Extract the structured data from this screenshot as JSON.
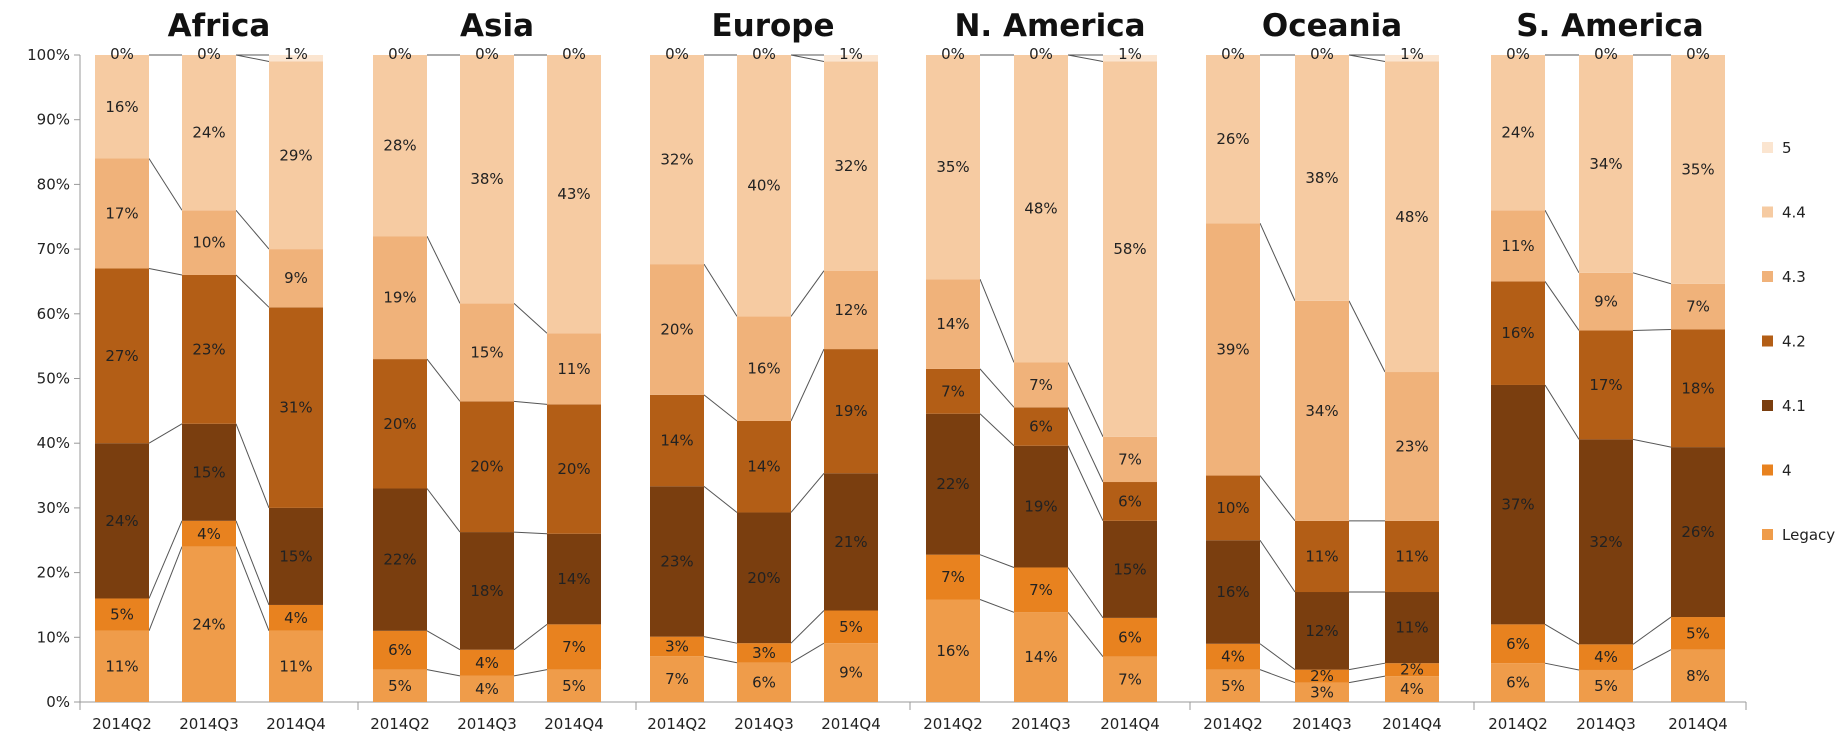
{
  "chart_data": {
    "type": "bar",
    "stacked": true,
    "normalized": true,
    "yticks": [
      "0%",
      "10%",
      "20%",
      "30%",
      "40%",
      "50%",
      "60%",
      "70%",
      "80%",
      "90%",
      "100%"
    ],
    "ylim": [
      0,
      100
    ],
    "legend": {
      "position": "right"
    },
    "series": [
      {
        "name": "Legacy",
        "color": "#EF9C4A"
      },
      {
        "name": "4",
        "color": "#E8821F"
      },
      {
        "name": "4.1",
        "color": "#7A3E0F"
      },
      {
        "name": "4.2",
        "color": "#B35E16"
      },
      {
        "name": "4.3",
        "color": "#F0B27A"
      },
      {
        "name": "4.4",
        "color": "#F6CBA2"
      },
      {
        "name": "5",
        "color": "#FBE5D0"
      }
    ],
    "panels": [
      {
        "title": "Africa",
        "categories": [
          "2014Q2",
          "2014Q3",
          "2014Q4"
        ],
        "values": [
          [
            11,
            5,
            24,
            27,
            17,
            16,
            0
          ],
          [
            24,
            4,
            15,
            23,
            10,
            24,
            0
          ],
          [
            11,
            4,
            15,
            31,
            9,
            29,
            1
          ]
        ],
        "labels": [
          [
            "11%",
            "5%",
            "24%",
            "27%",
            "17%",
            "16%",
            "0%"
          ],
          [
            "24%",
            "4%",
            "15%",
            "23%",
            "10%",
            "24%",
            "0%"
          ],
          [
            "11%",
            "4%",
            "15%",
            "31%",
            "9%",
            "29%",
            "1%"
          ]
        ]
      },
      {
        "title": "Asia",
        "categories": [
          "2014Q2",
          "2014Q3",
          "2014Q4"
        ],
        "values": [
          [
            5,
            6,
            22,
            20,
            19,
            28,
            0
          ],
          [
            4,
            4,
            18,
            20,
            15,
            38,
            0
          ],
          [
            5,
            7,
            14,
            20,
            11,
            43,
            0
          ]
        ],
        "labels": [
          [
            "5%",
            "6%",
            "22%",
            "20%",
            "19%",
            "28%",
            "0%"
          ],
          [
            "4%",
            "4%",
            "18%",
            "20%",
            "15%",
            "38%",
            "0%"
          ],
          [
            "5%",
            "7%",
            "14%",
            "20%",
            "11%",
            "43%",
            "0%"
          ]
        ]
      },
      {
        "title": "Europe",
        "categories": [
          "2014Q2",
          "2014Q3",
          "2014Q4"
        ],
        "values": [
          [
            7,
            3,
            23,
            14,
            20,
            32,
            0
          ],
          [
            6,
            3,
            20,
            14,
            16,
            40,
            0
          ],
          [
            9,
            5,
            21,
            19,
            12,
            32,
            1
          ]
        ],
        "labels": [
          [
            "7%",
            "3%",
            "23%",
            "14%",
            "20%",
            "32%",
            "0%"
          ],
          [
            "6%",
            "3%",
            "20%",
            "14%",
            "16%",
            "40%",
            "0%"
          ],
          [
            "9%",
            "5%",
            "21%",
            "19%",
            "12%",
            "32%",
            "1%"
          ]
        ]
      },
      {
        "title": "N. America",
        "categories": [
          "2014Q2",
          "2014Q3",
          "2014Q4"
        ],
        "values": [
          [
            16,
            7,
            22,
            7,
            14,
            35,
            0
          ],
          [
            14,
            7,
            19,
            6,
            7,
            48,
            0
          ],
          [
            7,
            6,
            15,
            6,
            7,
            58,
            1
          ]
        ],
        "labels": [
          [
            "16%",
            "7%",
            "22%",
            "7%",
            "14%",
            "35%",
            "0%"
          ],
          [
            "14%",
            "7%",
            "19%",
            "6%",
            "7%",
            "48%",
            "0%"
          ],
          [
            "7%",
            "6%",
            "15%",
            "6%",
            "7%",
            "58%",
            "1%"
          ]
        ]
      },
      {
        "title": "Oceania",
        "categories": [
          "2014Q2",
          "2014Q3",
          "2014Q4"
        ],
        "values": [
          [
            5,
            4,
            16,
            10,
            39,
            26,
            0
          ],
          [
            3,
            2,
            12,
            11,
            34,
            38,
            0
          ],
          [
            4,
            2,
            11,
            11,
            23,
            48,
            1
          ]
        ],
        "labels": [
          [
            "5%",
            "4%",
            "16%",
            "10%",
            "39%",
            "26%",
            "0%"
          ],
          [
            "3%",
            "2%",
            "12%",
            "11%",
            "34%",
            "38%",
            "0%"
          ],
          [
            "4%",
            "2%",
            "11%",
            "11%",
            "23%",
            "48%",
            "1%"
          ]
        ]
      },
      {
        "title": "S. America",
        "categories": [
          "2014Q2",
          "2014Q3",
          "2014Q4"
        ],
        "values": [
          [
            6,
            6,
            37,
            16,
            11,
            24,
            0
          ],
          [
            5,
            4,
            32,
            17,
            9,
            34,
            0
          ],
          [
            8,
            5,
            26,
            18,
            7,
            35,
            0
          ]
        ],
        "labels": [
          [
            "6%",
            "6%",
            "37%",
            "16%",
            "11%",
            "24%",
            "0%"
          ],
          [
            "5%",
            "4%",
            "32%",
            "17%",
            "9%",
            "34%",
            "0%"
          ],
          [
            "8%",
            "5%",
            "26%",
            "18%",
            "7%",
            "35%",
            "0%"
          ]
        ]
      }
    ]
  }
}
